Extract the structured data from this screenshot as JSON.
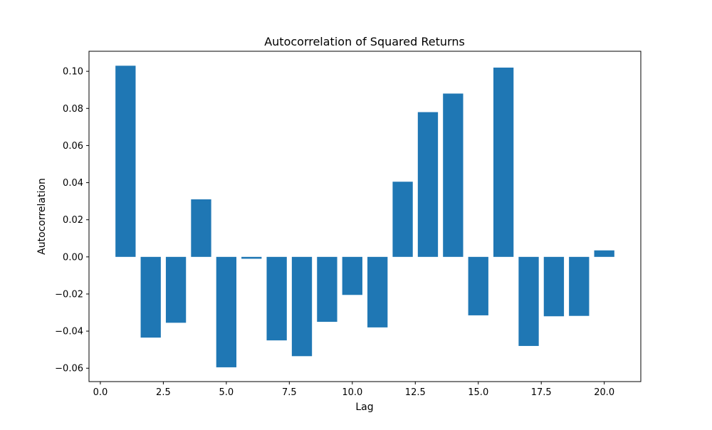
{
  "chart_data": {
    "type": "bar",
    "title": "Autocorrelation of Squared Returns",
    "xlabel": "Lag",
    "ylabel": "Autocorrelation",
    "x": [
      1,
      2,
      3,
      4,
      5,
      6,
      7,
      8,
      9,
      10,
      11,
      12,
      13,
      14,
      15,
      16,
      17,
      18,
      19,
      20
    ],
    "values": [
      0.103,
      -0.0435,
      -0.0355,
      0.031,
      -0.0595,
      -0.001,
      -0.045,
      -0.0535,
      -0.035,
      -0.0205,
      -0.038,
      0.0405,
      0.078,
      0.088,
      -0.0315,
      0.102,
      -0.048,
      -0.032,
      -0.0318,
      0.0035
    ],
    "xlim": [
      -0.45,
      21.45
    ],
    "ylim": [
      -0.0672,
      0.1108
    ],
    "xticks": [
      0.0,
      2.5,
      5.0,
      7.5,
      10.0,
      12.5,
      15.0,
      17.5,
      20.0
    ],
    "xtick_labels": [
      "0.0",
      "2.5",
      "5.0",
      "7.5",
      "10.0",
      "12.5",
      "15.0",
      "17.5",
      "20.0"
    ],
    "yticks": [
      -0.06,
      -0.04,
      -0.02,
      0.0,
      0.02,
      0.04,
      0.06,
      0.08,
      0.1
    ],
    "ytick_labels": [
      "−0.06",
      "−0.04",
      "−0.02",
      "0.00",
      "0.02",
      "0.04",
      "0.06",
      "0.08",
      "0.10"
    ],
    "bar_width": 0.8,
    "bar_color": "#1f77b4",
    "grid": false,
    "legend": "none"
  }
}
